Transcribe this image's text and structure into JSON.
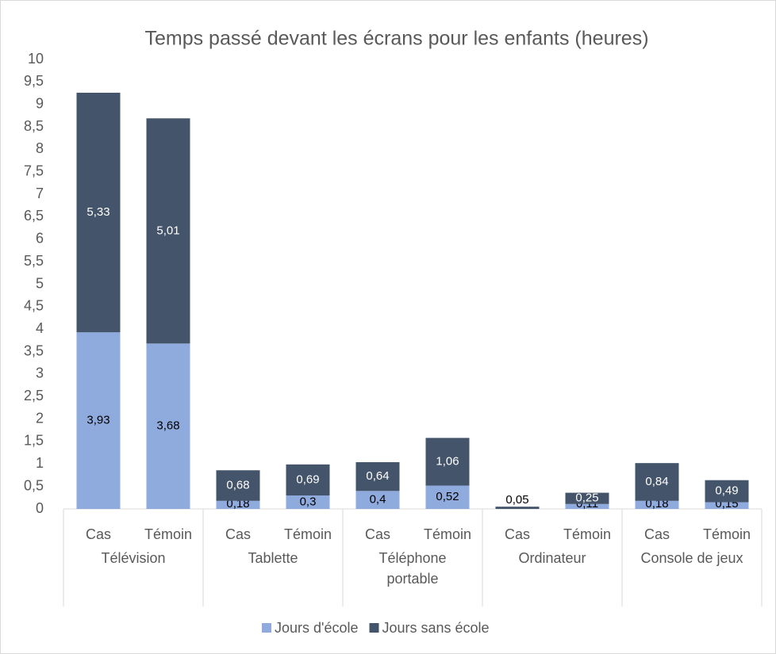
{
  "chart_data": {
    "type": "stacked_bar",
    "title": "Temps passé devant les écrans pour les enfants (heures)",
    "categories": [
      "Cas",
      "Témoin",
      "Cas",
      "Témoin",
      "Cas",
      "Témoin",
      "Cas",
      "Témoin",
      "Cas",
      "Témoin"
    ],
    "groups": [
      [
        "Télévision"
      ],
      [
        "Tablette"
      ],
      [
        "Téléphone",
        "portable"
      ],
      [
        "Ordinateur"
      ],
      [
        "Console de jeux"
      ]
    ],
    "series": [
      {
        "name": "Jours d'école",
        "color": "#8faadc",
        "values": [
          3.93,
          3.68,
          0.18,
          0.3,
          0.4,
          0.52,
          0,
          0.11,
          0.18,
          0.15
        ],
        "value_labels": [
          "3,93",
          "3,68",
          "0,18",
          "0,3",
          "0,4",
          "0,52",
          null,
          "0,11",
          "0,18",
          "0,15"
        ]
      },
      {
        "name": "Jours sans école",
        "color": "#44546a",
        "values": [
          5.33,
          5.01,
          0.68,
          0.69,
          0.64,
          1.06,
          0.05,
          0.25,
          0.84,
          0.49
        ],
        "value_labels": [
          "5,33",
          "5,01",
          "0,68",
          "0,69",
          "0,64",
          "1,06",
          "0,05",
          "0,25",
          "0,84",
          "0,49"
        ]
      }
    ],
    "ylim": [
      0,
      10
    ],
    "yticks": [
      0,
      {
        "value": 0.5,
        "label": "0,5"
      },
      1,
      {
        "value": 1.5,
        "label": "1,5"
      },
      2,
      {
        "value": 2.5,
        "label": "2,5"
      },
      3,
      {
        "value": 3.5,
        "label": "3,5"
      },
      4,
      {
        "value": 4.5,
        "label": "4,5"
      },
      5,
      {
        "value": 5.5,
        "label": "5,5"
      },
      6,
      {
        "value": 6.5,
        "label": "6,5"
      },
      7,
      {
        "value": 7.5,
        "label": "7,5"
      },
      8,
      {
        "value": 8.5,
        "label": "8,5"
      },
      9,
      {
        "value": 9.5,
        "label": "9,5"
      },
      10
    ],
    "legend": "bottom",
    "grid": false
  }
}
